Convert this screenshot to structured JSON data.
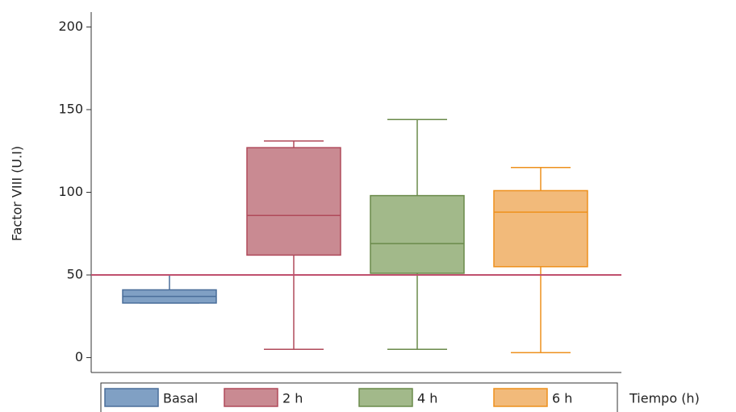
{
  "chart_data": {
    "type": "box",
    "y_label": "Factor VIII  (U.I)",
    "x_label": "Tiempo (h)",
    "ylim": [
      -9,
      209
    ],
    "yticks": [
      0,
      50,
      100,
      150,
      200
    ],
    "reference_line": {
      "value": 50,
      "color": "#c0506e"
    },
    "boxes": [
      {
        "name": "Basal",
        "color": "#80a0c4",
        "edge": "#4a6e9a",
        "min": 33,
        "q1": 33,
        "median": 37,
        "q3": 41,
        "max": 50
      },
      {
        "name": "2 h",
        "color": "#c98a92",
        "edge": "#b04a5a",
        "min": 5,
        "q1": 62,
        "median": 86,
        "q3": 127,
        "max": 131
      },
      {
        "name": "4 h",
        "color": "#a2b98a",
        "edge": "#6a8a4a",
        "min": 5,
        "q1": 51,
        "median": 69,
        "q3": 98,
        "max": 144
      },
      {
        "name": "6 h",
        "color": "#f2ba7a",
        "edge": "#ee901c",
        "min": 3,
        "q1": 55,
        "median": 88,
        "q3": 101,
        "max": 115
      }
    ]
  }
}
